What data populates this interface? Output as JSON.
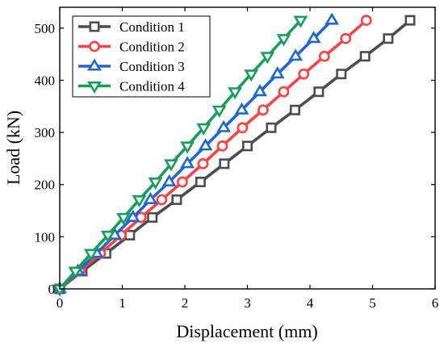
{
  "chart_data": {
    "type": "line",
    "xlabel": "Displacement (mm)",
    "ylabel": "Load (kN)",
    "xlim": [
      0,
      6
    ],
    "ylim": [
      0,
      540
    ],
    "x_ticks": [
      "0",
      "1",
      "2",
      "3",
      "4",
      "5",
      "6"
    ],
    "y_ticks": [
      "0",
      "100",
      "200",
      "300",
      "400",
      "500"
    ],
    "grid": false,
    "legend_position": "top-left",
    "series": [
      {
        "name": "Condition 1",
        "color": "#4d4d4d",
        "marker": "square",
        "x": [
          0,
          0.36,
          0.74,
          1.12,
          1.48,
          1.87,
          2.25,
          2.63,
          3.0,
          3.38,
          3.76,
          4.14,
          4.5,
          4.88,
          5.25,
          5.6
        ],
        "y": [
          0,
          34,
          68,
          103,
          137,
          171,
          205,
          240,
          274,
          309,
          343,
          378,
          412,
          446,
          480,
          515
        ]
      },
      {
        "name": "Condition 2",
        "color": "#ff4040",
        "marker": "circle",
        "x": [
          0,
          0.32,
          0.65,
          0.98,
          1.3,
          1.63,
          1.96,
          2.29,
          2.6,
          2.92,
          3.25,
          3.58,
          3.9,
          4.23,
          4.57,
          4.9
        ],
        "y": [
          0,
          34,
          68,
          103,
          137,
          171,
          205,
          240,
          274,
          309,
          343,
          378,
          412,
          446,
          480,
          515
        ]
      },
      {
        "name": "Condition 3",
        "color": "#1f66d6",
        "marker": "triangle-up",
        "x": [
          0,
          0.29,
          0.59,
          0.88,
          1.17,
          1.45,
          1.75,
          2.04,
          2.33,
          2.62,
          2.91,
          3.2,
          3.48,
          3.77,
          4.06,
          4.35
        ],
        "y": [
          0,
          34,
          68,
          103,
          137,
          171,
          205,
          240,
          274,
          309,
          343,
          378,
          412,
          446,
          480,
          515
        ]
      },
      {
        "name": "Condition 4",
        "color": "#15a05a",
        "marker": "triangle-down",
        "x": [
          0,
          0.25,
          0.5,
          0.77,
          1.02,
          1.27,
          1.53,
          1.78,
          2.04,
          2.3,
          2.55,
          2.8,
          3.06,
          3.32,
          3.58,
          3.85
        ],
        "y": [
          0,
          34,
          68,
          103,
          137,
          171,
          205,
          240,
          274,
          309,
          343,
          378,
          412,
          446,
          480,
          515
        ]
      }
    ]
  }
}
